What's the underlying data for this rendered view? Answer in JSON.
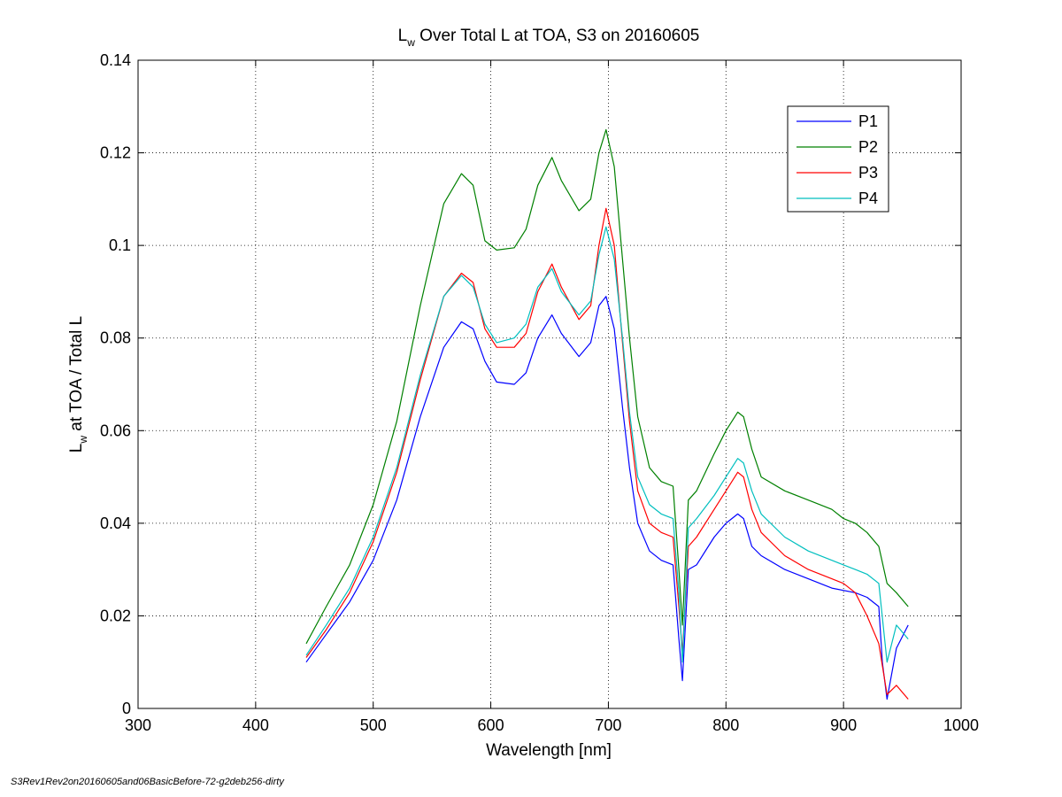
{
  "chart_data": {
    "type": "line",
    "title": {
      "main": "L",
      "sub": "w",
      "rest": " Over Total L at TOA, S3 on 20160605"
    },
    "xlabel": "Wavelength [nm]",
    "ylabel": {
      "main": "L",
      "sub": "w",
      "rest": " at TOA / Total L"
    },
    "xlim": [
      300,
      1000
    ],
    "ylim": [
      0,
      0.14
    ],
    "xticks": [
      300,
      400,
      500,
      600,
      700,
      800,
      900,
      1000
    ],
    "yticks": [
      0,
      0.02,
      0.04,
      0.06,
      0.08,
      0.1,
      0.12,
      0.14
    ],
    "xtick_labels": [
      "300",
      "400",
      "500",
      "600",
      "700",
      "800",
      "900",
      "1000"
    ],
    "ytick_labels": [
      "0",
      "0.02",
      "0.04",
      "0.06",
      "0.08",
      "0.1",
      "0.12",
      "0.14"
    ],
    "grid": true,
    "legend_position": "top-right",
    "series": [
      {
        "name": "P1",
        "color": "#0000ff",
        "x": [
          443,
          460,
          480,
          500,
          520,
          540,
          560,
          575,
          585,
          595,
          605,
          620,
          630,
          640,
          652,
          660,
          675,
          685,
          692,
          698,
          705,
          712,
          718,
          725,
          735,
          745,
          755,
          760,
          763,
          768,
          775,
          790,
          800,
          810,
          815,
          822,
          830,
          850,
          870,
          890,
          910,
          920,
          930,
          933,
          937,
          945,
          955
        ],
        "y": [
          0.01,
          0.016,
          0.023,
          0.032,
          0.045,
          0.063,
          0.078,
          0.0835,
          0.082,
          0.075,
          0.0705,
          0.07,
          0.0725,
          0.08,
          0.085,
          0.081,
          0.076,
          0.079,
          0.087,
          0.089,
          0.082,
          0.065,
          0.052,
          0.04,
          0.034,
          0.032,
          0.031,
          0.015,
          0.006,
          0.03,
          0.031,
          0.037,
          0.04,
          0.042,
          0.041,
          0.035,
          0.033,
          0.03,
          0.028,
          0.026,
          0.025,
          0.024,
          0.022,
          0.01,
          0.002,
          0.013,
          0.018
        ]
      },
      {
        "name": "P2",
        "color": "#008000",
        "x": [
          443,
          460,
          480,
          500,
          520,
          540,
          560,
          575,
          585,
          595,
          605,
          620,
          630,
          640,
          652,
          660,
          675,
          685,
          692,
          698,
          705,
          712,
          718,
          725,
          735,
          745,
          755,
          760,
          763,
          768,
          775,
          790,
          800,
          810,
          815,
          822,
          830,
          850,
          870,
          890,
          900,
          910,
          920,
          930,
          937,
          945,
          955
        ],
        "y": [
          0.014,
          0.022,
          0.031,
          0.044,
          0.062,
          0.087,
          0.109,
          0.1155,
          0.113,
          0.101,
          0.099,
          0.0995,
          0.1035,
          0.113,
          0.119,
          0.114,
          0.1075,
          0.11,
          0.12,
          0.125,
          0.117,
          0.097,
          0.08,
          0.063,
          0.052,
          0.049,
          0.048,
          0.03,
          0.018,
          0.045,
          0.047,
          0.055,
          0.06,
          0.064,
          0.063,
          0.056,
          0.05,
          0.047,
          0.045,
          0.043,
          0.041,
          0.04,
          0.038,
          0.035,
          0.027,
          0.025,
          0.022
        ]
      },
      {
        "name": "P3",
        "color": "#ff0000",
        "x": [
          443,
          460,
          480,
          500,
          520,
          540,
          560,
          575,
          585,
          595,
          605,
          620,
          630,
          640,
          652,
          660,
          675,
          685,
          692,
          698,
          705,
          712,
          718,
          725,
          735,
          745,
          755,
          760,
          763,
          768,
          775,
          790,
          800,
          810,
          815,
          822,
          830,
          850,
          870,
          890,
          900,
          910,
          920,
          930,
          937,
          945,
          955
        ],
        "y": [
          0.011,
          0.017,
          0.025,
          0.036,
          0.051,
          0.071,
          0.089,
          0.094,
          0.092,
          0.082,
          0.078,
          0.078,
          0.081,
          0.09,
          0.096,
          0.091,
          0.084,
          0.087,
          0.1,
          0.108,
          0.1,
          0.079,
          0.062,
          0.047,
          0.04,
          0.038,
          0.037,
          0.022,
          0.012,
          0.035,
          0.037,
          0.043,
          0.047,
          0.051,
          0.05,
          0.043,
          0.038,
          0.033,
          0.03,
          0.028,
          0.027,
          0.025,
          0.02,
          0.014,
          0.003,
          0.005,
          0.002
        ]
      },
      {
        "name": "P4",
        "color": "#00bfbf",
        "x": [
          443,
          460,
          480,
          500,
          520,
          540,
          560,
          575,
          585,
          595,
          605,
          620,
          630,
          640,
          652,
          660,
          675,
          685,
          692,
          698,
          705,
          712,
          718,
          725,
          735,
          745,
          755,
          760,
          763,
          768,
          775,
          790,
          800,
          810,
          815,
          822,
          830,
          850,
          870,
          890,
          900,
          910,
          920,
          930,
          937,
          945,
          955
        ],
        "y": [
          0.0115,
          0.018,
          0.026,
          0.037,
          0.052,
          0.072,
          0.089,
          0.0935,
          0.091,
          0.083,
          0.079,
          0.08,
          0.083,
          0.091,
          0.095,
          0.09,
          0.085,
          0.088,
          0.098,
          0.104,
          0.097,
          0.08,
          0.064,
          0.05,
          0.044,
          0.042,
          0.041,
          0.025,
          0.01,
          0.039,
          0.041,
          0.046,
          0.05,
          0.054,
          0.053,
          0.047,
          0.042,
          0.037,
          0.034,
          0.032,
          0.031,
          0.03,
          0.029,
          0.027,
          0.01,
          0.018,
          0.015
        ]
      }
    ]
  },
  "footer_text": "S3Rev1Rev2on20160605and06BasicBefore-72-g2deb256-dirty"
}
